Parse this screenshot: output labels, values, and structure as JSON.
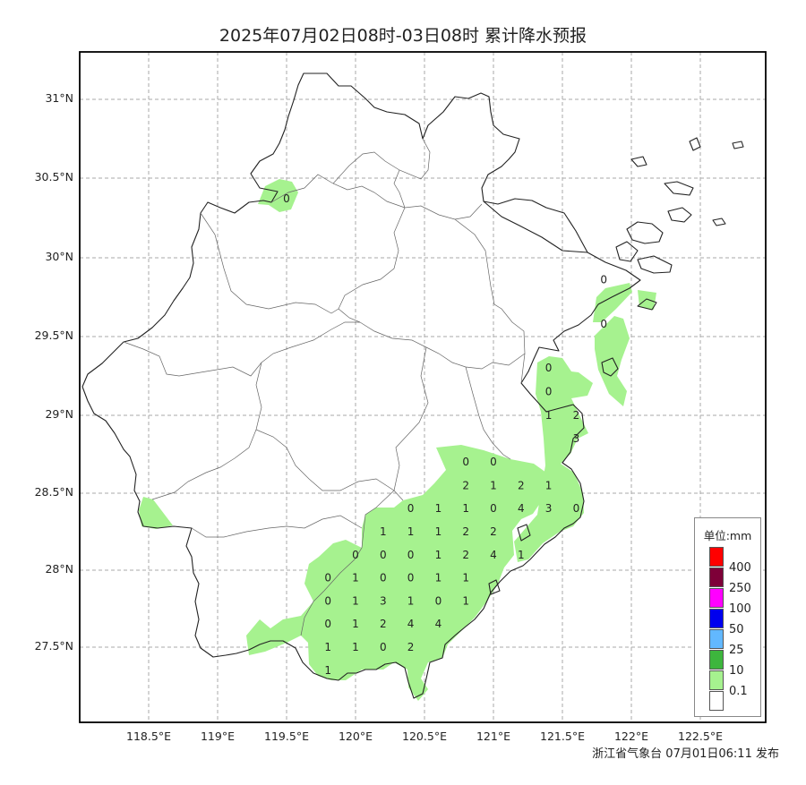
{
  "title": "2025年07月02日08时-03日08时 累计降水预报",
  "publisher": "浙江省气象台 07月01日06:11 发布",
  "lat_labels": [
    "31°N",
    "30.5°N",
    "30°N",
    "29.5°N",
    "29°N",
    "28.5°N",
    "28°N",
    "27.5°N"
  ],
  "lon_labels": [
    "118.5°E",
    "119°E",
    "119.5°E",
    "120°E",
    "120.5°E",
    "121°E",
    "121.5°E",
    "122°E",
    "122.5°E"
  ],
  "legend": {
    "title": "单位:mm",
    "items": [
      {
        "label": "400",
        "color": "#ff0000"
      },
      {
        "label": "250",
        "color": "#7e0038"
      },
      {
        "label": "100",
        "color": "#ff00ff"
      },
      {
        "label": "50",
        "color": "#0000ee"
      },
      {
        "label": "25",
        "color": "#62b8ff"
      },
      {
        "label": "10",
        "color": "#3db63d"
      },
      {
        "label": "0.1",
        "color": "#a6f28f"
      },
      {
        "label": "",
        "color": "#ffffff"
      }
    ]
  },
  "colors": {
    "rain_light": "#a6f28f",
    "grid": "#aaaaaa",
    "border": "#000000"
  },
  "station_values": [
    {
      "lon": 119.5,
      "lat": 30.37,
      "value": "0"
    },
    {
      "lon": 121.8,
      "lat": 29.86,
      "value": "0"
    },
    {
      "lon": 121.8,
      "lat": 29.58,
      "value": "0"
    },
    {
      "lon": 121.4,
      "lat": 29.3,
      "value": "0"
    },
    {
      "lon": 121.4,
      "lat": 29.15,
      "value": "0"
    },
    {
      "lon": 121.4,
      "lat": 29.0,
      "value": "1"
    },
    {
      "lon": 121.6,
      "lat": 29.0,
      "value": "2"
    },
    {
      "lon": 121.6,
      "lat": 28.85,
      "value": "3"
    },
    {
      "lon": 120.8,
      "lat": 28.7,
      "value": "0"
    },
    {
      "lon": 121.0,
      "lat": 28.7,
      "value": "0"
    },
    {
      "lon": 120.8,
      "lat": 28.55,
      "value": "2"
    },
    {
      "lon": 121.0,
      "lat": 28.55,
      "value": "1"
    },
    {
      "lon": 121.2,
      "lat": 28.55,
      "value": "2"
    },
    {
      "lon": 121.4,
      "lat": 28.55,
      "value": "1"
    },
    {
      "lon": 120.4,
      "lat": 28.4,
      "value": "0"
    },
    {
      "lon": 120.6,
      "lat": 28.4,
      "value": "1"
    },
    {
      "lon": 120.8,
      "lat": 28.4,
      "value": "1"
    },
    {
      "lon": 121.0,
      "lat": 28.4,
      "value": "0"
    },
    {
      "lon": 121.2,
      "lat": 28.4,
      "value": "4"
    },
    {
      "lon": 121.4,
      "lat": 28.4,
      "value": "3"
    },
    {
      "lon": 121.6,
      "lat": 28.4,
      "value": "0"
    },
    {
      "lon": 120.2,
      "lat": 28.25,
      "value": "1"
    },
    {
      "lon": 120.4,
      "lat": 28.25,
      "value": "1"
    },
    {
      "lon": 120.6,
      "lat": 28.25,
      "value": "1"
    },
    {
      "lon": 120.8,
      "lat": 28.25,
      "value": "2"
    },
    {
      "lon": 121.0,
      "lat": 28.25,
      "value": "2"
    },
    {
      "lon": 120.0,
      "lat": 28.1,
      "value": "0"
    },
    {
      "lon": 120.2,
      "lat": 28.1,
      "value": "0"
    },
    {
      "lon": 120.4,
      "lat": 28.1,
      "value": "0"
    },
    {
      "lon": 120.6,
      "lat": 28.1,
      "value": "1"
    },
    {
      "lon": 120.8,
      "lat": 28.1,
      "value": "2"
    },
    {
      "lon": 121.0,
      "lat": 28.1,
      "value": "4"
    },
    {
      "lon": 121.2,
      "lat": 28.1,
      "value": "1"
    },
    {
      "lon": 119.8,
      "lat": 27.95,
      "value": "0"
    },
    {
      "lon": 120.0,
      "lat": 27.95,
      "value": "1"
    },
    {
      "lon": 120.2,
      "lat": 27.95,
      "value": "0"
    },
    {
      "lon": 120.4,
      "lat": 27.95,
      "value": "0"
    },
    {
      "lon": 120.6,
      "lat": 27.95,
      "value": "1"
    },
    {
      "lon": 120.8,
      "lat": 27.95,
      "value": "1"
    },
    {
      "lon": 119.8,
      "lat": 27.8,
      "value": "0"
    },
    {
      "lon": 120.0,
      "lat": 27.8,
      "value": "1"
    },
    {
      "lon": 120.2,
      "lat": 27.8,
      "value": "3"
    },
    {
      "lon": 120.4,
      "lat": 27.8,
      "value": "1"
    },
    {
      "lon": 120.6,
      "lat": 27.8,
      "value": "0"
    },
    {
      "lon": 120.8,
      "lat": 27.8,
      "value": "1"
    },
    {
      "lon": 119.8,
      "lat": 27.65,
      "value": "0"
    },
    {
      "lon": 120.0,
      "lat": 27.65,
      "value": "1"
    },
    {
      "lon": 120.2,
      "lat": 27.65,
      "value": "2"
    },
    {
      "lon": 120.4,
      "lat": 27.65,
      "value": "4"
    },
    {
      "lon": 120.6,
      "lat": 27.65,
      "value": "4"
    },
    {
      "lon": 119.8,
      "lat": 27.5,
      "value": "1"
    },
    {
      "lon": 120.0,
      "lat": 27.5,
      "value": "1"
    },
    {
      "lon": 120.2,
      "lat": 27.5,
      "value": "0"
    },
    {
      "lon": 120.4,
      "lat": 27.5,
      "value": "2"
    },
    {
      "lon": 119.8,
      "lat": 27.35,
      "value": "1"
    }
  ]
}
